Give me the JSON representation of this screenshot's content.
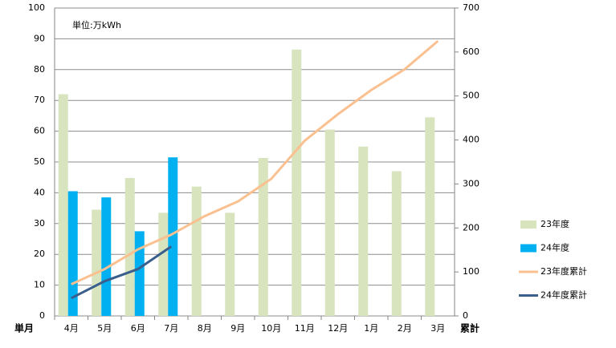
{
  "chart_data": {
    "type": "bar-line",
    "unit_label": "単位:万kWh",
    "y_label": "単月",
    "y2_label": "累計",
    "categories": [
      "4月",
      "5月",
      "6月",
      "7月",
      "8月",
      "9月",
      "10月",
      "11月",
      "12月",
      "1月",
      "2月",
      "3月"
    ],
    "series": [
      {
        "name": "23年度",
        "type": "bar",
        "color": "#d7e4bd",
        "values": [
          72,
          34.5,
          44.8,
          33.5,
          42,
          33.5,
          51.3,
          86.5,
          60.5,
          55,
          47,
          64.5
        ]
      },
      {
        "name": "24年度",
        "type": "bar",
        "color": "#00b0f0",
        "values": [
          40.5,
          38.5,
          27.5,
          51.5,
          null,
          null,
          null,
          null,
          null,
          null,
          null,
          null
        ]
      },
      {
        "name": "23年度累計",
        "type": "line",
        "axis": "y2",
        "color": "#fac090",
        "values": [
          72,
          106.5,
          151.3,
          184.8,
          226.8,
          260.3,
          311.6,
          398.1,
          458.6,
          513.6,
          560.6,
          625.1
        ]
      },
      {
        "name": "24年度累計",
        "type": "line",
        "axis": "y2",
        "color": "#3a5f8c",
        "values": [
          40.5,
          79,
          106.5,
          158,
          null,
          null,
          null,
          null,
          null,
          null,
          null,
          null
        ]
      }
    ],
    "ylim": [
      0,
      100
    ],
    "yticks": [
      0,
      10,
      20,
      30,
      40,
      50,
      60,
      70,
      80,
      90,
      100
    ],
    "y2lim": [
      0,
      700
    ],
    "y2ticks": [
      0,
      100,
      200,
      300,
      400,
      500,
      600,
      700
    ],
    "grid": true,
    "legend": "right"
  }
}
